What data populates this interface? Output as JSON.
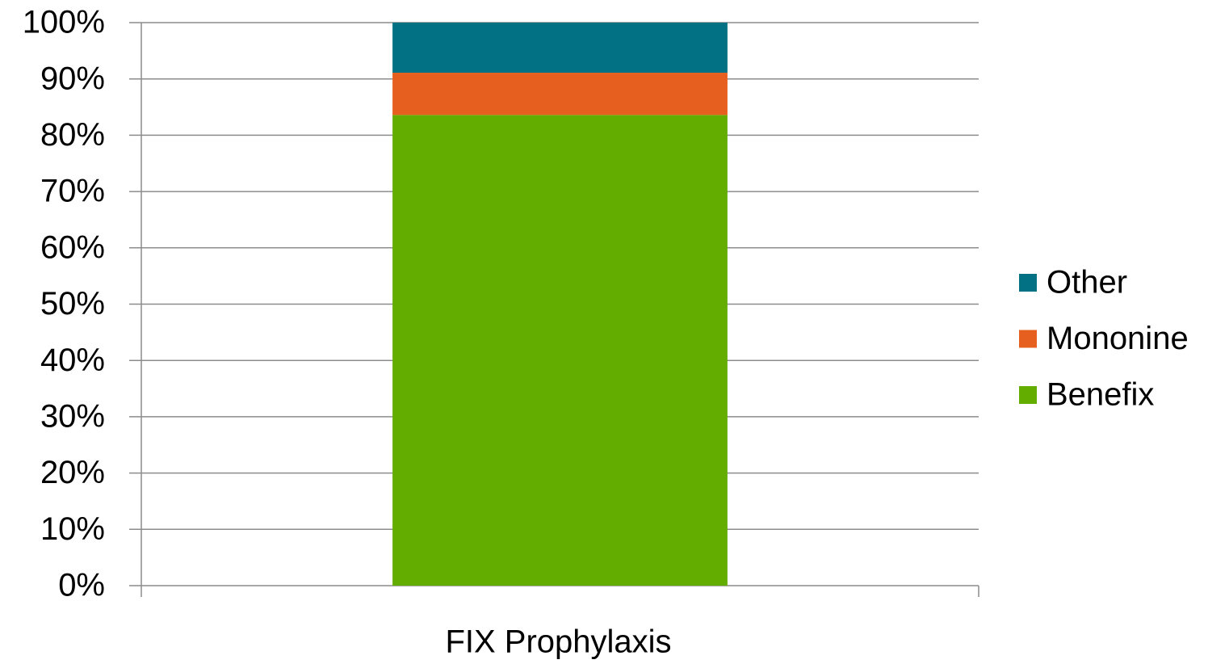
{
  "chart_data": {
    "type": "stacked_bar",
    "categories": [
      "FIX Prophylaxis"
    ],
    "series": [
      {
        "name": "Benefix",
        "color": "#63ac00",
        "values": [
          83.6
        ]
      },
      {
        "name": "Mononine",
        "color": "#e65f1e",
        "values": [
          7.5
        ]
      },
      {
        "name": "Other",
        "color": "#017183",
        "values": [
          8.9
        ]
      }
    ],
    "ylim": [
      0,
      100
    ],
    "yticks": [
      {
        "value": 0,
        "label": "0%"
      },
      {
        "value": 10,
        "label": "10%"
      },
      {
        "value": 20,
        "label": "20%"
      },
      {
        "value": 30,
        "label": "30%"
      },
      {
        "value": 40,
        "label": "40%"
      },
      {
        "value": 50,
        "label": "50%"
      },
      {
        "value": 60,
        "label": "60%"
      },
      {
        "value": 70,
        "label": "70%"
      },
      {
        "value": 80,
        "label": "80%"
      },
      {
        "value": 90,
        "label": "90%"
      },
      {
        "value": 100,
        "label": "100%"
      }
    ],
    "grid": true,
    "legend": "right"
  }
}
